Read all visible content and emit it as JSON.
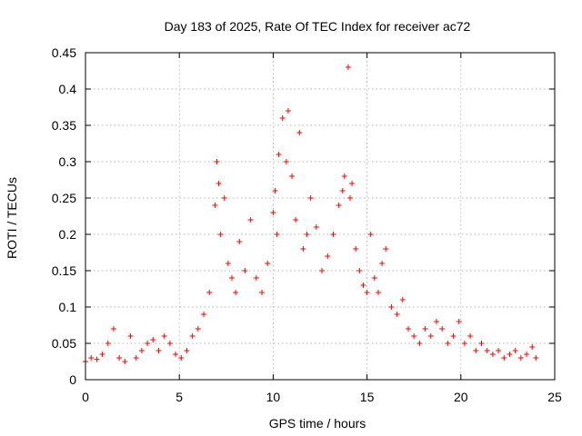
{
  "chart_data": {
    "type": "scatter",
    "title": "Day 183 of 2025, Rate Of TEC Index for receiver ac72",
    "xlabel": "GPS time / hours",
    "ylabel": "ROTI / TECUs",
    "xlim": [
      0,
      25
    ],
    "ylim": [
      0,
      0.45
    ],
    "xticks": [
      "0",
      "5",
      "10",
      "15",
      "20",
      "25"
    ],
    "yticks": [
      "0",
      "0.05",
      "0.1",
      "0.15",
      "0.2",
      "0.25",
      "0.3",
      "0.35",
      "0.4",
      "0.45"
    ],
    "grid": true,
    "marker": "plus",
    "color": "#ff0000",
    "series": [
      {
        "x": [
          0.0,
          0.3,
          0.6,
          0.9,
          1.2,
          1.5,
          1.8,
          2.1,
          2.4,
          2.7,
          3.0,
          3.3,
          3.6,
          3.9,
          4.2,
          4.5,
          4.8,
          5.1,
          5.4,
          5.7,
          6.0,
          6.3,
          6.6,
          6.9,
          7.0,
          7.1,
          7.2,
          7.4,
          7.6,
          7.8,
          8.0,
          8.2,
          8.5,
          8.8,
          9.1,
          9.4,
          9.7,
          10.0,
          10.1,
          10.2,
          10.3,
          10.5,
          10.7,
          10.8,
          11.0,
          11.2,
          11.4,
          11.6,
          11.8,
          12.0,
          12.3,
          12.6,
          12.9,
          13.2,
          13.5,
          13.7,
          13.8,
          14.0,
          14.1,
          14.2,
          14.4,
          14.6,
          14.8,
          15.0,
          15.2,
          15.4,
          15.6,
          15.8,
          16.0,
          16.3,
          16.6,
          16.9,
          17.2,
          17.5,
          17.8,
          18.1,
          18.4,
          18.7,
          19.0,
          19.3,
          19.6,
          19.9,
          20.2,
          20.5,
          20.8,
          21.1,
          21.4,
          21.7,
          22.0,
          22.3,
          22.6,
          22.9,
          23.2,
          23.5,
          23.8,
          24.0
        ],
        "y": [
          0.025,
          0.03,
          0.028,
          0.035,
          0.05,
          0.07,
          0.03,
          0.025,
          0.06,
          0.03,
          0.04,
          0.05,
          0.055,
          0.04,
          0.06,
          0.05,
          0.035,
          0.03,
          0.04,
          0.06,
          0.07,
          0.09,
          0.12,
          0.24,
          0.3,
          0.27,
          0.2,
          0.25,
          0.16,
          0.14,
          0.12,
          0.19,
          0.15,
          0.22,
          0.14,
          0.12,
          0.16,
          0.23,
          0.26,
          0.2,
          0.31,
          0.36,
          0.3,
          0.37,
          0.28,
          0.22,
          0.34,
          0.18,
          0.2,
          0.25,
          0.21,
          0.15,
          0.17,
          0.2,
          0.24,
          0.26,
          0.28,
          0.43,
          0.25,
          0.27,
          0.18,
          0.15,
          0.13,
          0.12,
          0.2,
          0.14,
          0.12,
          0.16,
          0.18,
          0.1,
          0.09,
          0.11,
          0.07,
          0.06,
          0.05,
          0.07,
          0.06,
          0.08,
          0.07,
          0.05,
          0.06,
          0.08,
          0.05,
          0.06,
          0.04,
          0.05,
          0.04,
          0.035,
          0.04,
          0.03,
          0.035,
          0.04,
          0.03,
          0.035,
          0.045,
          0.03
        ]
      }
    ]
  }
}
